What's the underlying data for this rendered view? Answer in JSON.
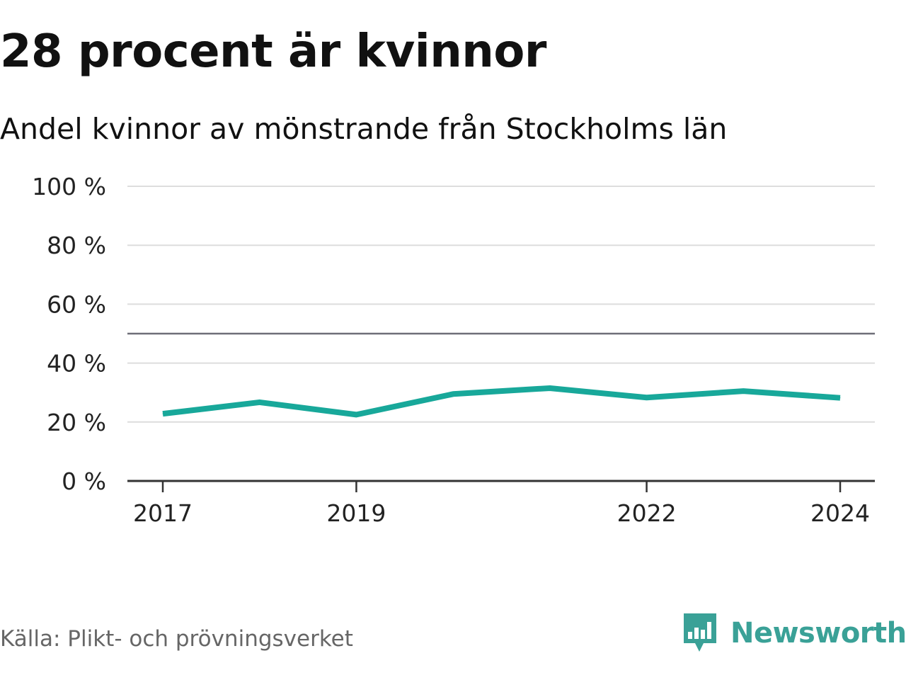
{
  "title": "28 procent är kvinnor",
  "subtitle": "Andel kvinnor av mönstrande från Stockholms län",
  "source": "Källa: Plikt- och prövningsverket",
  "brand": {
    "name": "Newsworthy",
    "logo_icon": "bar-chart-speech-bubble-icon",
    "color": "#3aa197"
  },
  "chart_data": {
    "type": "line",
    "title": "28 procent är kvinnor",
    "subtitle": "Andel kvinnor av mönstrande från Stockholms län",
    "xlabel": "",
    "ylabel": "",
    "x": [
      2017,
      2018,
      2019,
      2020,
      2021,
      2022,
      2023,
      2024
    ],
    "series": [
      {
        "name": "Andel kvinnor",
        "values": [
          22.8,
          26.7,
          22.5,
          29.5,
          31.5,
          28.3,
          30.5,
          28.2
        ],
        "color": "#18a89a"
      }
    ],
    "ylim": [
      0,
      100
    ],
    "yticks": [
      0,
      20,
      40,
      60,
      80,
      100
    ],
    "ytick_labels": [
      "0 %",
      "20 %",
      "40 %",
      "60 %",
      "80 %",
      "100 %"
    ],
    "xticks": [
      2017,
      2019,
      2022,
      2024
    ],
    "xtick_labels": [
      "2017",
      "2019",
      "2022",
      "2024"
    ],
    "reference_line": 50,
    "grid": true
  }
}
